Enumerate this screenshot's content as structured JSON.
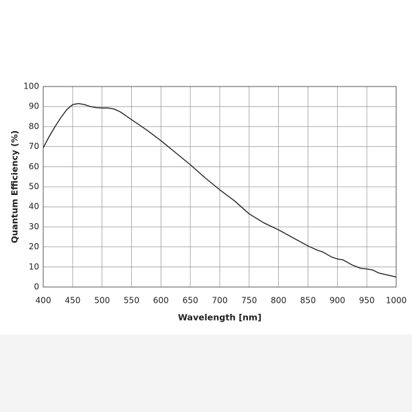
{
  "chart_data": {
    "type": "line",
    "xlabel": "Wavelength [nm]",
    "ylabel": "Quantum Efficiency (%)",
    "x": [
      400,
      410,
      420,
      430,
      440,
      450,
      460,
      470,
      480,
      490,
      500,
      510,
      520,
      530,
      540,
      550,
      560,
      575,
      600,
      625,
      650,
      675,
      700,
      725,
      750,
      775,
      800,
      825,
      850,
      865,
      875,
      890,
      900,
      910,
      925,
      940,
      950,
      960,
      970,
      985,
      1000
    ],
    "values": [
      69.5,
      75,
      80,
      84.5,
      88.5,
      91,
      91.5,
      91,
      90,
      89.5,
      89.3,
      89.3,
      88.8,
      87.5,
      85.5,
      83.5,
      81.5,
      78.5,
      73,
      67,
      61,
      54.5,
      48.5,
      43,
      36.5,
      32,
      28.5,
      24.5,
      20.5,
      18.5,
      17.5,
      15,
      14,
      13.5,
      11,
      9.3,
      9,
      8.5,
      7,
      6,
      5
    ],
    "color": "#222222",
    "xlim": [
      400,
      1000
    ],
    "ylim": [
      0,
      100
    ],
    "xticks": [
      400,
      450,
      500,
      550,
      600,
      650,
      700,
      750,
      800,
      850,
      900,
      950,
      1000
    ],
    "yticks": [
      0,
      10,
      20,
      30,
      40,
      50,
      60,
      70,
      80,
      90,
      100
    ],
    "grid": true
  }
}
